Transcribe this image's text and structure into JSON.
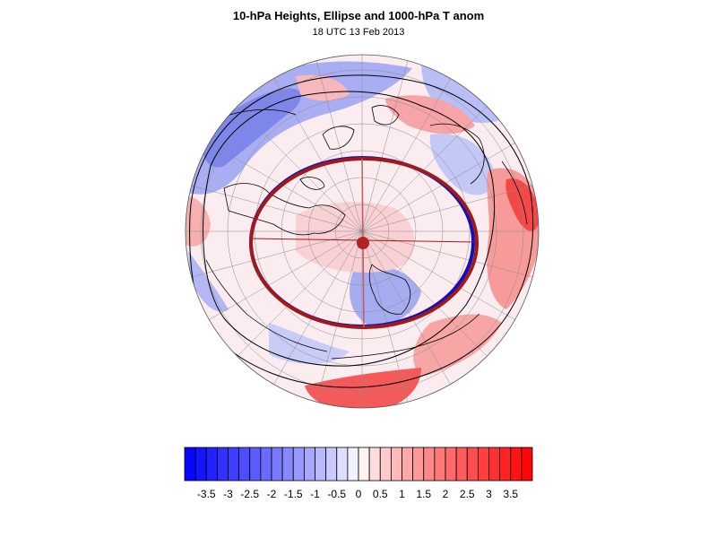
{
  "figure": {
    "title": "10-hPa Heights, Ellipse and 1000-hPa T anom",
    "subtitle": "18 UTC 13 Feb 2013"
  },
  "colorbar": {
    "labels": [
      "-3.5",
      "-3",
      "-2.5",
      "-2",
      "-1.5",
      "-1",
      "-0.5",
      "0",
      "0.5",
      "1",
      "1.5",
      "2",
      "2.5",
      "3",
      "3.5"
    ],
    "min": -4,
    "max": 4,
    "step": 0.25,
    "neg_color": "#0000ff",
    "pos_color": "#ff0000",
    "mid_color": "#ffffff"
  },
  "map": {
    "projection": "polar stereographic (north pole)",
    "height_contour_color": "#000000",
    "ellipse_fit_color": "#0000aa",
    "ellipse_colors": {
      "vortex_edge": "#1010c0",
      "fitted_ellipse": "#a01a1a"
    },
    "center_marker_color": "#b22222",
    "coastline_color": "#000000",
    "graticule_color": "#808080"
  }
}
